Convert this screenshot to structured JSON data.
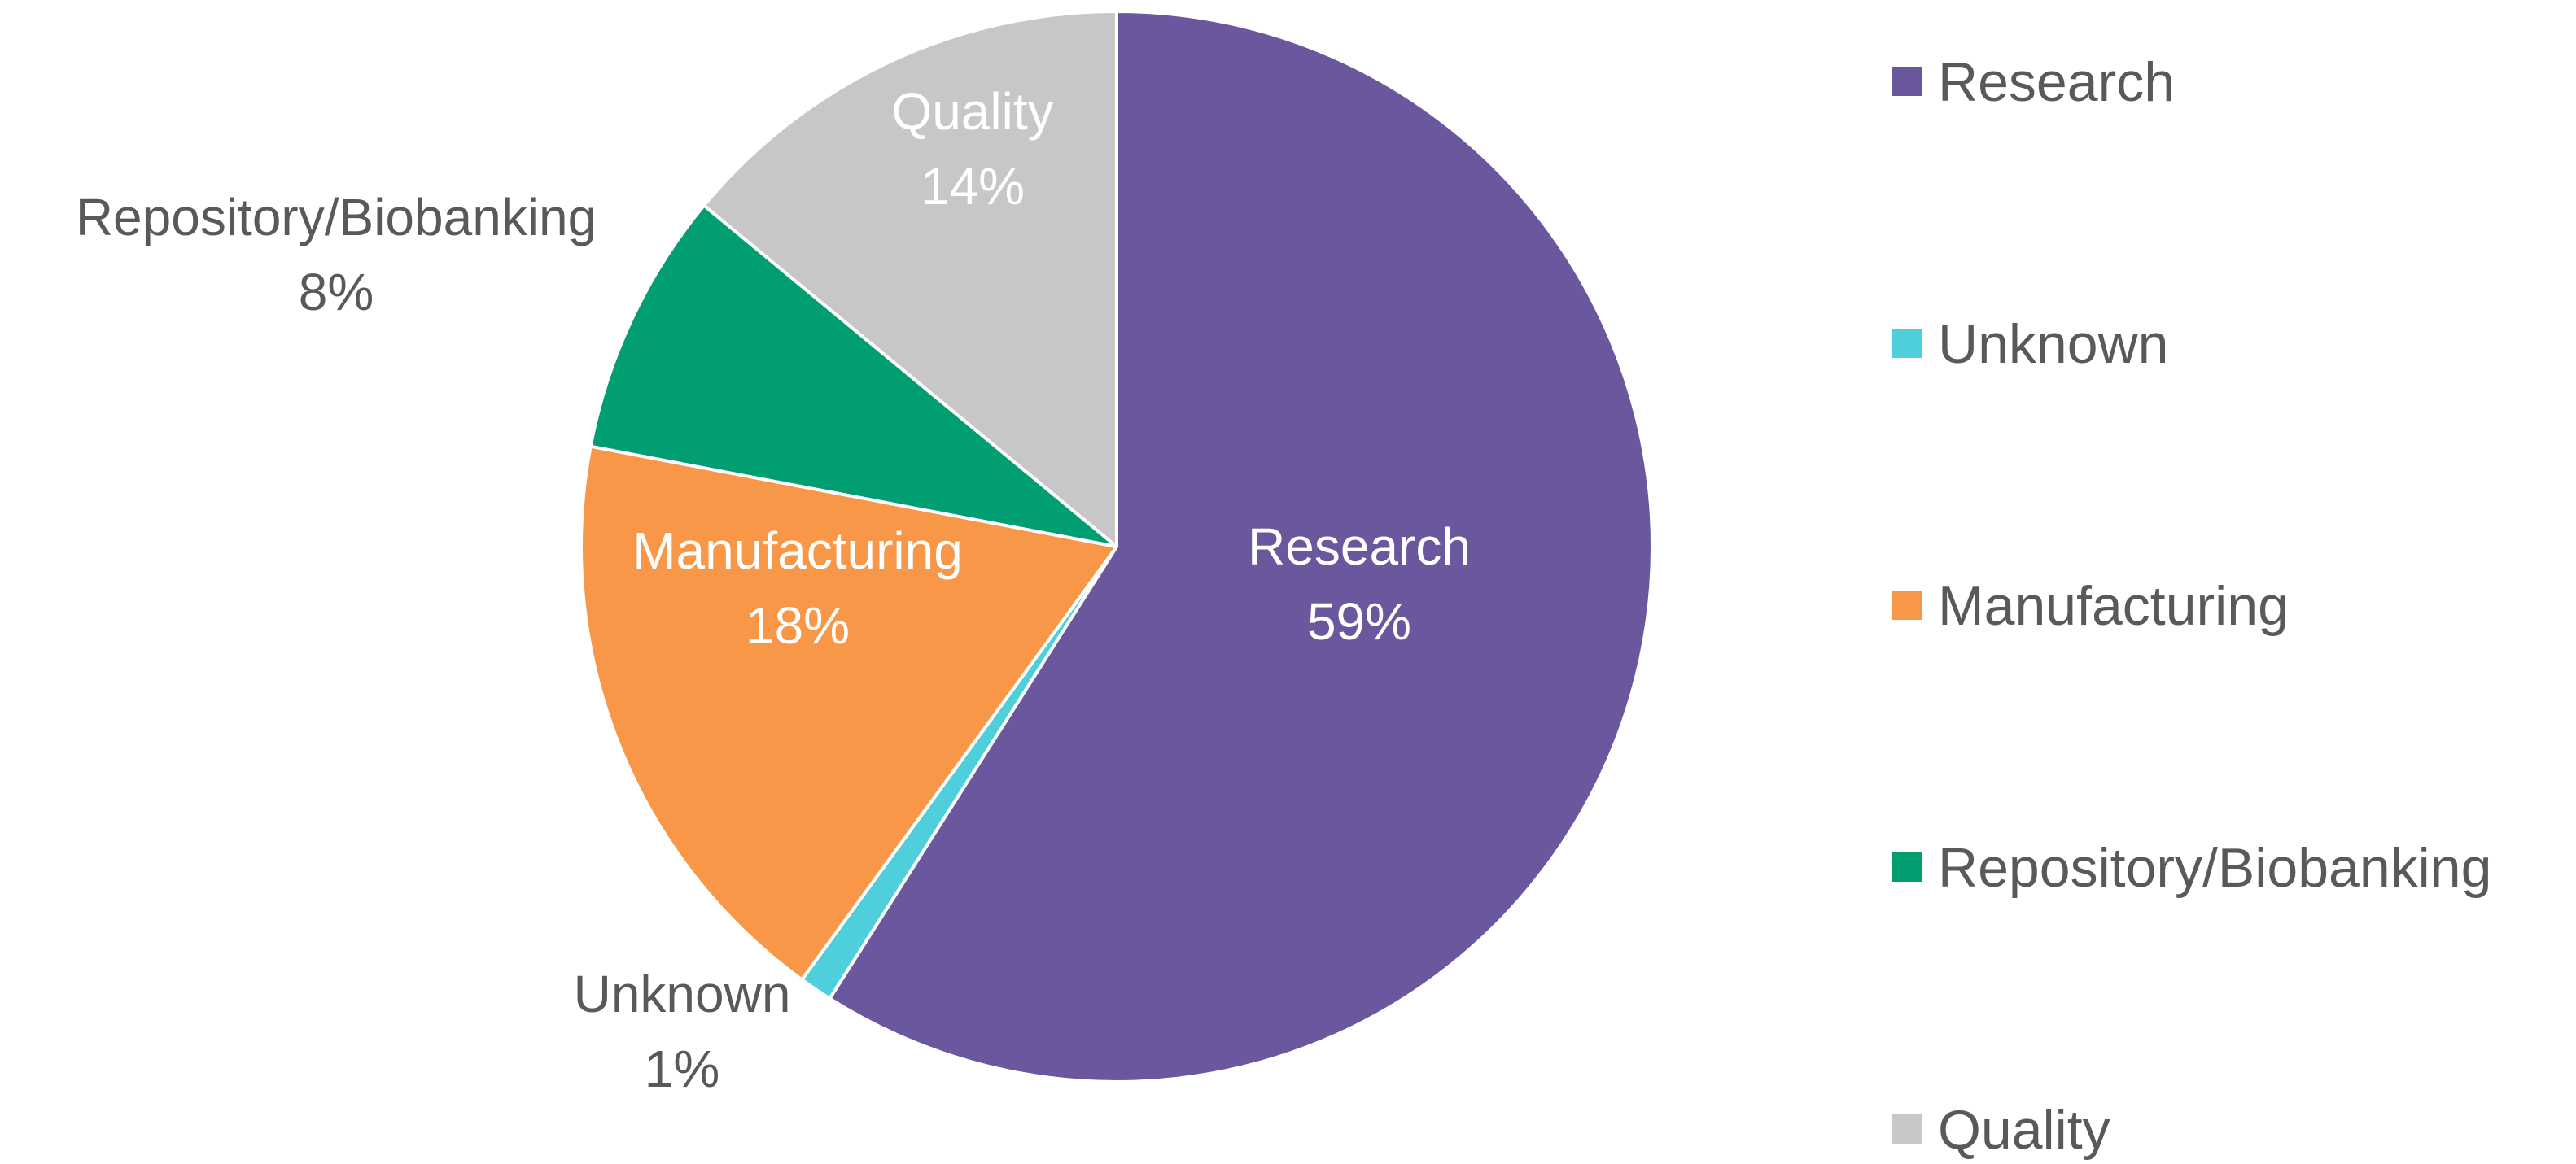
{
  "chart_data": {
    "type": "pie",
    "title": "",
    "start_angle_deg": 0,
    "direction": "clockwise",
    "legend_position": "right",
    "slices": [
      {
        "label": "Research",
        "value": 59,
        "value_label": "59%",
        "color": "#6A579E",
        "label_color": "#FFFFFF",
        "label_placement": "inside"
      },
      {
        "label": "Unknown",
        "value": 1,
        "value_label": "1%",
        "color": "#4FCFDB",
        "label_color": "#595959",
        "label_placement": "outside"
      },
      {
        "label": "Manufacturing",
        "value": 18,
        "value_label": "18%",
        "color": "#F79747",
        "label_color": "#FFFFFF",
        "label_placement": "inside"
      },
      {
        "label": "Repository/Biobanking",
        "value": 8,
        "value_label": "8%",
        "color": "#019E72",
        "label_color": "#595959",
        "label_placement": "outside"
      },
      {
        "label": "Quality",
        "value": 14,
        "value_label": "14%",
        "color": "#C7C7C7",
        "label_color": "#FFFFFF",
        "label_placement": "inside"
      }
    ],
    "legend": [
      {
        "label": "Research",
        "color": "#6A579E"
      },
      {
        "label": "Unknown",
        "color": "#4FCFDB"
      },
      {
        "label": "Manufacturing",
        "color": "#F79747"
      },
      {
        "label": "Repository/Biobanking",
        "color": "#019E72"
      },
      {
        "label": "Quality",
        "color": "#C7C7C7"
      }
    ]
  }
}
